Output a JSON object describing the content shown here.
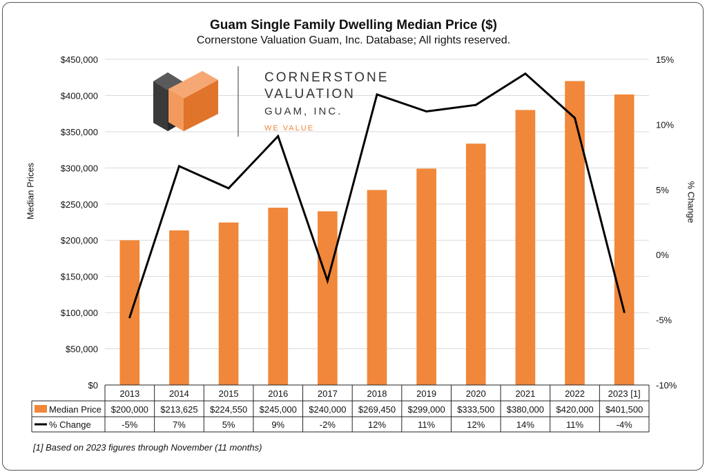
{
  "chart_data": {
    "type": "bar",
    "title": "Guam Single Family Dwelling Median Price ($)",
    "subtitle": "Cornerstone Valuation Guam, Inc. Database; All rights reserved.",
    "categories": [
      "2013",
      "2014",
      "2015",
      "2016",
      "2017",
      "2018",
      "2019",
      "2020",
      "2021",
      "2022",
      "2023 [1]"
    ],
    "series": [
      {
        "name": "Median Price",
        "type": "bar",
        "axis": "left",
        "color": "#F0873A",
        "values": [
          200000,
          213625,
          224550,
          245000,
          240000,
          269450,
          299000,
          333500,
          380000,
          420000,
          401500
        ],
        "labels": [
          "$200,000",
          "$213,625",
          "$224,550",
          "$245,000",
          "$240,000",
          "$269,450",
          "$299,000",
          "$333,500",
          "$380,000",
          "$420,000",
          "$401,500"
        ]
      },
      {
        "name": "% Change",
        "type": "line",
        "axis": "right",
        "color": "#000000",
        "values": [
          -4.8,
          6.8,
          5.1,
          9.1,
          -2.0,
          12.3,
          11.0,
          11.5,
          13.9,
          10.5,
          -4.4
        ],
        "labels": [
          "-5%",
          "7%",
          "5%",
          "9%",
          "-2%",
          "12%",
          "11%",
          "12%",
          "14%",
          "11%",
          "-4%"
        ]
      }
    ],
    "ylabel": "Median Prices",
    "y2label": "% Change",
    "ylim": [
      0,
      450000
    ],
    "y2lim": [
      -10,
      15
    ],
    "yticks": [
      "$0",
      "$50,000",
      "$100,000",
      "$150,000",
      "$200,000",
      "$250,000",
      "$300,000",
      "$350,000",
      "$400,000",
      "$450,000"
    ],
    "y2ticks": [
      "-10%",
      "-5%",
      "0%",
      "5%",
      "10%",
      "15%"
    ],
    "grid": true,
    "legend": "data-table"
  },
  "logo": {
    "line1": "CORNERSTONE",
    "line2": "VALUATION",
    "line3": "GUAM, INC.",
    "tagline": "WE VALUE"
  },
  "footnote": "[1] Based on 2023 figures through November (11 months)",
  "colors": {
    "bar": "#F0873A",
    "line": "#000000",
    "grid": "#D9D9D9"
  }
}
